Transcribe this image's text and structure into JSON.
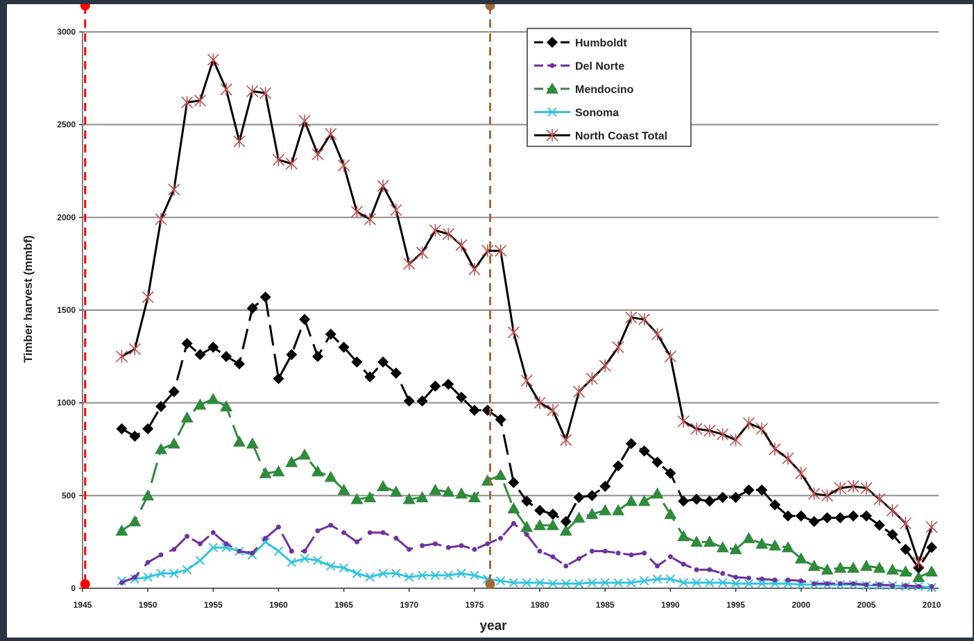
{
  "chart_data": {
    "type": "line",
    "xlabel": "year",
    "ylabel": "Timber harvest (mmbf)",
    "xlim": [
      1945,
      2010
    ],
    "ylim": [
      0,
      3000
    ],
    "xticks": [
      1945,
      1950,
      1955,
      1960,
      1965,
      1970,
      1975,
      1980,
      1985,
      1990,
      1995,
      2000,
      2005,
      2010
    ],
    "yticks": [
      0,
      500,
      1000,
      1500,
      2000,
      2500,
      3000
    ],
    "grid": "horizontal",
    "legend_position": "top-center",
    "series": [
      {
        "name": "Humboldt",
        "color": "#000000",
        "marker": "diamond",
        "dash": "dashed",
        "x": [
          1948,
          1949,
          1950,
          1951,
          1952,
          1953,
          1954,
          1955,
          1956,
          1957,
          1958,
          1959,
          1960,
          1961,
          1962,
          1963,
          1964,
          1965,
          1966,
          1967,
          1968,
          1969,
          1970,
          1971,
          1972,
          1973,
          1974,
          1975,
          1976,
          1977,
          1978,
          1979,
          1980,
          1981,
          1982,
          1983,
          1984,
          1985,
          1986,
          1987,
          1988,
          1989,
          1990,
          1991,
          1992,
          1993,
          1994,
          1995,
          1996,
          1997,
          1998,
          1999,
          2000,
          2001,
          2002,
          2003,
          2004,
          2005,
          2006,
          2007,
          2008,
          2009,
          2010
        ],
        "y": [
          860,
          820,
          860,
          980,
          1060,
          1320,
          1260,
          1300,
          1250,
          1210,
          1510,
          1570,
          1130,
          1260,
          1450,
          1250,
          1370,
          1300,
          1220,
          1140,
          1220,
          1160,
          1010,
          1010,
          1090,
          1100,
          1030,
          960,
          960,
          910,
          570,
          470,
          420,
          400,
          360,
          490,
          500,
          550,
          660,
          780,
          740,
          680,
          620,
          470,
          480,
          470,
          490,
          490,
          530,
          530,
          450,
          390,
          390,
          360,
          380,
          380,
          390,
          390,
          340,
          290,
          210,
          110,
          220
        ]
      },
      {
        "name": "Del Norte",
        "color": "#7030a0",
        "marker": "dot",
        "dash": "dashed",
        "x": [
          1948,
          1949,
          1950,
          1951,
          1952,
          1953,
          1954,
          1955,
          1956,
          1957,
          1958,
          1959,
          1960,
          1961,
          1962,
          1963,
          1964,
          1965,
          1966,
          1967,
          1968,
          1969,
          1970,
          1971,
          1972,
          1973,
          1974,
          1975,
          1976,
          1977,
          1978,
          1979,
          1980,
          1981,
          1982,
          1983,
          1984,
          1985,
          1986,
          1987,
          1988,
          1989,
          1990,
          1991,
          1992,
          1993,
          1994,
          1995,
          1996,
          1997,
          1998,
          1999,
          2000,
          2001,
          2002,
          2003,
          2004,
          2005,
          2006,
          2007,
          2008,
          2009,
          2010
        ],
        "y": [
          30,
          60,
          140,
          180,
          210,
          280,
          240,
          300,
          240,
          200,
          190,
          270,
          330,
          200,
          200,
          310,
          340,
          300,
          250,
          300,
          300,
          270,
          210,
          230,
          240,
          220,
          230,
          210,
          240,
          270,
          350,
          290,
          200,
          170,
          120,
          160,
          200,
          200,
          190,
          180,
          190,
          120,
          170,
          130,
          100,
          100,
          80,
          60,
          55,
          50,
          45,
          45,
          40,
          25,
          25,
          25,
          25,
          20,
          20,
          15,
          15,
          10,
          10
        ]
      },
      {
        "name": "Mendocino",
        "color": "#2e8b3a",
        "marker": "triangle",
        "dash": "dashed",
        "x": [
          1948,
          1949,
          1950,
          1951,
          1952,
          1953,
          1954,
          1955,
          1956,
          1957,
          1958,
          1959,
          1960,
          1961,
          1962,
          1963,
          1964,
          1965,
          1966,
          1967,
          1968,
          1969,
          1970,
          1971,
          1972,
          1973,
          1974,
          1975,
          1976,
          1977,
          1978,
          1979,
          1980,
          1981,
          1982,
          1983,
          1984,
          1985,
          1986,
          1987,
          1988,
          1989,
          1990,
          1991,
          1992,
          1993,
          1994,
          1995,
          1996,
          1997,
          1998,
          1999,
          2000,
          2001,
          2002,
          2003,
          2004,
          2005,
          2006,
          2007,
          2008,
          2009,
          2010
        ],
        "y": [
          310,
          360,
          500,
          750,
          780,
          920,
          990,
          1020,
          980,
          790,
          780,
          620,
          630,
          680,
          720,
          630,
          600,
          530,
          480,
          490,
          550,
          520,
          480,
          490,
          530,
          520,
          510,
          490,
          580,
          610,
          430,
          330,
          340,
          340,
          310,
          380,
          400,
          420,
          420,
          470,
          470,
          510,
          400,
          280,
          250,
          250,
          220,
          210,
          270,
          240,
          230,
          220,
          160,
          120,
          100,
          110,
          110,
          120,
          110,
          100,
          90,
          60,
          90
        ]
      },
      {
        "name": "Sonoma",
        "color": "#33c3e0",
        "marker": "x",
        "dash": "solid",
        "x": [
          1948,
          1949,
          1950,
          1951,
          1952,
          1953,
          1954,
          1955,
          1956,
          1957,
          1958,
          1959,
          1960,
          1961,
          1962,
          1963,
          1964,
          1965,
          1966,
          1967,
          1968,
          1969,
          1970,
          1971,
          1972,
          1973,
          1974,
          1975,
          1976,
          1977,
          1978,
          1979,
          1980,
          1981,
          1982,
          1983,
          1984,
          1985,
          1986,
          1987,
          1988,
          1989,
          1990,
          1991,
          1992,
          1993,
          1994,
          1995,
          1996,
          1997,
          1998,
          1999,
          2000,
          2001,
          2002,
          2003,
          2004,
          2005,
          2006,
          2007,
          2008,
          2009,
          2010
        ],
        "y": [
          40,
          50,
          60,
          80,
          80,
          100,
          150,
          220,
          220,
          200,
          180,
          250,
          200,
          140,
          160,
          150,
          120,
          110,
          80,
          60,
          80,
          80,
          60,
          70,
          70,
          70,
          80,
          70,
          50,
          40,
          30,
          30,
          30,
          25,
          25,
          25,
          30,
          30,
          30,
          30,
          40,
          50,
          50,
          30,
          30,
          30,
          30,
          25,
          25,
          25,
          25,
          25,
          20,
          20,
          20,
          20,
          20,
          15,
          15,
          15,
          10,
          10,
          5
        ]
      },
      {
        "name": "North Coast Total",
        "color": "#000000",
        "marker": "asterisk",
        "markerColor": "#c0504d",
        "dash": "solid",
        "x": [
          1948,
          1949,
          1950,
          1951,
          1952,
          1953,
          1954,
          1955,
          1956,
          1957,
          1958,
          1959,
          1960,
          1961,
          1962,
          1963,
          1964,
          1965,
          1966,
          1967,
          1968,
          1969,
          1970,
          1971,
          1972,
          1973,
          1974,
          1975,
          1976,
          1977,
          1978,
          1979,
          1980,
          1981,
          1982,
          1983,
          1984,
          1985,
          1986,
          1987,
          1988,
          1989,
          1990,
          1991,
          1992,
          1993,
          1994,
          1995,
          1996,
          1997,
          1998,
          1999,
          2000,
          2001,
          2002,
          2003,
          2004,
          2005,
          2006,
          2007,
          2008,
          2009,
          2010
        ],
        "y": [
          1250,
          1290,
          1570,
          1990,
          2150,
          2620,
          2630,
          2850,
          2690,
          2410,
          2680,
          2670,
          2310,
          2290,
          2520,
          2340,
          2450,
          2280,
          2030,
          1990,
          2170,
          2040,
          1750,
          1810,
          1930,
          1910,
          1850,
          1720,
          1820,
          1820,
          1380,
          1120,
          1000,
          960,
          800,
          1060,
          1130,
          1200,
          1300,
          1460,
          1450,
          1370,
          1250,
          900,
          860,
          850,
          830,
          800,
          890,
          860,
          750,
          700,
          620,
          510,
          500,
          540,
          550,
          540,
          480,
          420,
          350,
          140,
          330
        ]
      }
    ],
    "reference_lines": [
      {
        "x": 1945.2,
        "color": "#ff0000"
      },
      {
        "x": 1976.2,
        "color": "#a0693a"
      }
    ]
  }
}
